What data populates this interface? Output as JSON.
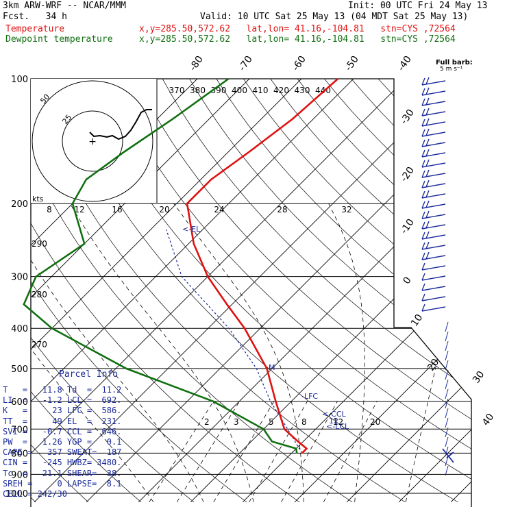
{
  "header": {
    "model": "3km ARW-WRF -- NCAR/MMM",
    "init": "Init: 00 UTC Fri 24 May 13",
    "fcst": "Fcst.   34 h",
    "valid": "Valid: 10 UTC Sat 25 May 13 (04 MDT Sat 25 May 13)",
    "temp_label": "Temperature",
    "temp_loc": "x,y=285.50,572.62   lat,lon= 41.16,-104.81   stn=CYS ,72564",
    "dew_label": "Dewpoint temperature",
    "dew_loc": "x,y=285.50,572.62   lat,lon= 41.16,-104.81   stn=CYS ,72564"
  },
  "barb_legend": {
    "title": "Full barb:",
    "unit": "5 m s⁻¹"
  },
  "colors": {
    "temperature": "#e01010",
    "dewpoint": "#107010",
    "parcel": "#1a2a9a"
  },
  "chart_data": {
    "type": "line",
    "diagram": "skew-T log-p",
    "y_axis": {
      "scale": "log",
      "ticks": [
        100,
        200,
        300,
        400,
        500,
        600,
        700,
        800,
        900,
        1000
      ]
    },
    "isotherm_labels": [
      "-80",
      "-70",
      "-60",
      "-50",
      "-40",
      "-30",
      "-20",
      "-10",
      "0",
      "10",
      "20",
      "30",
      "40"
    ],
    "theta_labels": [
      "370",
      "380",
      "390",
      "400",
      "410",
      "420",
      "430",
      "440"
    ],
    "theta_side_labels": [
      "290",
      "280",
      "270"
    ],
    "mixing_ratio_labels": [
      "2",
      "3",
      "5",
      "8",
      "12",
      "20"
    ],
    "hodo_speed_labels": [
      "8",
      "12",
      "16",
      "20",
      "24",
      "28",
      "32"
    ],
    "hodo_unit": "kts",
    "hodo_ring_labels": [
      "50",
      "25"
    ],
    "level_markers": [
      "LFC",
      "CCL",
      "LCL",
      "EL",
      "M"
    ],
    "series": [
      {
        "name": "Temperature",
        "points": [
          [
            100,
            -53
          ],
          [
            125,
            -54
          ],
          [
            150,
            -56
          ],
          [
            175,
            -58
          ],
          [
            200,
            -58
          ],
          [
            250,
            -49
          ],
          [
            300,
            -40
          ],
          [
            350,
            -31
          ],
          [
            400,
            -23
          ],
          [
            500,
            -11
          ],
          [
            600,
            -3
          ],
          [
            700,
            4
          ],
          [
            750,
            9
          ],
          [
            780,
            12
          ],
          [
            800,
            12
          ]
        ]
      },
      {
        "name": "Dewpoint temperature",
        "points": [
          [
            100,
            -74
          ],
          [
            125,
            -77
          ],
          [
            150,
            -80
          ],
          [
            175,
            -82
          ],
          [
            200,
            -80
          ],
          [
            250,
            -70
          ],
          [
            300,
            -73
          ],
          [
            350,
            -70
          ],
          [
            400,
            -60
          ],
          [
            500,
            -38
          ],
          [
            600,
            -15
          ],
          [
            700,
            0
          ],
          [
            750,
            4
          ],
          [
            780,
            10
          ],
          [
            800,
            11
          ]
        ]
      }
    ],
    "parcel_path": [
      [
        800,
        12
      ],
      [
        692,
        4
      ],
      [
        600,
        -4
      ],
      [
        500,
        -13
      ],
      [
        400,
        -26
      ],
      [
        300,
        -45
      ],
      [
        231,
        -57
      ]
    ]
  },
  "parcel_info": {
    "title": "Parcel Info",
    "rows": [
      "T   =   11.8 Td  =  11.2",
      "LI  =   -1.2 LCL =  692.",
      "K   =     23 LFC =  586.",
      "TT  =     49 EL  =  231.",
      "SVI =   -0.7 CCL =  646.",
      "PW  =   1.26 YGP =   0.1",
      "CAPE =   357 SWEAT=  187",
      "CIN =   -245 HWBZ= 3480.",
      "Tc  =   21.1 SHEAR=  38.",
      "SREH =     0 LAPSE=  8.1",
      "CELL = 242/30"
    ]
  },
  "marker_text": {
    "lfc": "-LFC",
    "ccl": "<-CCL",
    "lcl": "<-LCL",
    "el": "<-EL",
    "m": "M",
    "twelve": "12"
  }
}
